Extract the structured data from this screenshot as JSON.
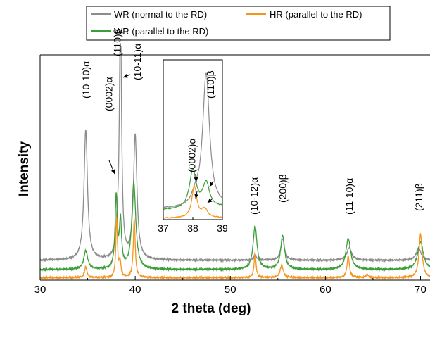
{
  "chart_data": {
    "type": "line",
    "xlabel": "2 theta (deg)",
    "ylabel": "Intensity",
    "xlim": [
      30,
      71
    ],
    "xticks": [
      30,
      40,
      50,
      60,
      70
    ],
    "yticks_shown": false,
    "legend": {
      "placement": "top",
      "entries": [
        {
          "key": "wr_normal",
          "label": "WR (normal to the RD)",
          "color": "#8c8c8c"
        },
        {
          "key": "hr_parallel",
          "label": "HR (parallel to the RD)",
          "color": "#f7941d"
        },
        {
          "key": "wr_parallel",
          "label": "WR (parallel to the RD)",
          "color": "#3a9e3a"
        }
      ]
    },
    "series": [
      {
        "key": "wr_normal",
        "color": "#8c8c8c",
        "baseline": 0.64,
        "peaks": [
          {
            "x": 34.8,
            "h": 4.2,
            "w": 0.22
          },
          {
            "x": 38.1,
            "h": 0.6,
            "w": 0.15
          },
          {
            "x": 38.45,
            "h": 8.0,
            "w": 0.14
          },
          {
            "x": 40.0,
            "h": 4.0,
            "w": 0.22
          },
          {
            "x": 52.6,
            "h": 0.15,
            "w": 0.2
          },
          {
            "x": 55.5,
            "h": 0.7,
            "w": 0.22
          },
          {
            "x": 62.5,
            "h": 0.4,
            "w": 0.3
          },
          {
            "x": 69.8,
            "h": 0.4,
            "w": 0.3
          }
        ]
      },
      {
        "key": "wr_parallel",
        "color": "#3a9e3a",
        "baseline": 0.34,
        "peaks": [
          {
            "x": 34.8,
            "h": 0.6,
            "w": 0.25
          },
          {
            "x": 38.0,
            "h": 2.3,
            "w": 0.14
          },
          {
            "x": 38.45,
            "h": 1.5,
            "w": 0.14
          },
          {
            "x": 39.85,
            "h": 2.8,
            "w": 0.25
          },
          {
            "x": 52.6,
            "h": 1.4,
            "w": 0.25
          },
          {
            "x": 55.5,
            "h": 1.1,
            "w": 0.25
          },
          {
            "x": 62.4,
            "h": 1.0,
            "w": 0.3
          },
          {
            "x": 70.0,
            "h": 0.9,
            "w": 0.35
          }
        ]
      },
      {
        "key": "hr_parallel",
        "color": "#f7941d",
        "baseline": 0.08,
        "peaks": [
          {
            "x": 34.8,
            "h": 0.35,
            "w": 0.15
          },
          {
            "x": 38.05,
            "h": 1.9,
            "w": 0.1
          },
          {
            "x": 38.4,
            "h": 0.5,
            "w": 0.12
          },
          {
            "x": 39.9,
            "h": 1.9,
            "w": 0.12
          },
          {
            "x": 52.6,
            "h": 0.8,
            "w": 0.12
          },
          {
            "x": 55.4,
            "h": 0.4,
            "w": 0.2
          },
          {
            "x": 62.4,
            "h": 0.7,
            "w": 0.15
          },
          {
            "x": 64.4,
            "h": 0.1,
            "w": 0.15
          },
          {
            "x": 70.0,
            "h": 1.4,
            "w": 0.2
          }
        ]
      }
    ],
    "peak_labels": [
      {
        "text": "(10-10)α",
        "x": 34.8
      },
      {
        "text": "(110)β",
        "x": 38.1
      },
      {
        "text": "(0002)α",
        "x": 37.2
      },
      {
        "text": "(10-11)α",
        "x": 40.2
      },
      {
        "text": "(10-12)α",
        "x": 52.5
      },
      {
        "text": "(200)β",
        "x": 55.5
      },
      {
        "text": "(11-10)α",
        "x": 62.5
      },
      {
        "text": "(211)β",
        "x": 69.8
      }
    ],
    "inset": {
      "xlim": [
        37,
        39
      ],
      "xticks": [
        37,
        38,
        39
      ],
      "labels": [
        {
          "text": "(0002)α",
          "x": 37.97
        },
        {
          "text": "(110)β",
          "x": 38.6
        }
      ]
    }
  }
}
